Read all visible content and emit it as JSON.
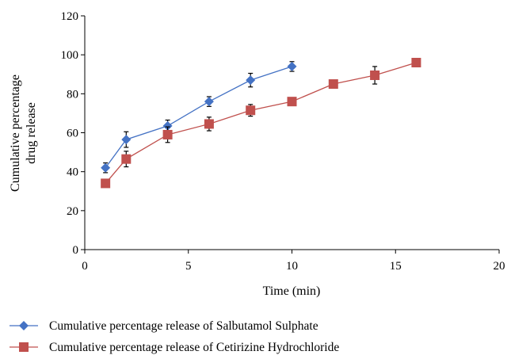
{
  "chart_data": {
    "type": "line",
    "xlabel": "Time (min)",
    "ylabel_lines": [
      "Cumulative percentage",
      "drug release"
    ],
    "xlim": [
      0,
      20
    ],
    "ylim": [
      0,
      120
    ],
    "x_ticks": [
      "0",
      "5",
      "10",
      "15",
      "20"
    ],
    "y_ticks": [
      "0",
      "20",
      "40",
      "60",
      "80",
      "100",
      "120"
    ],
    "grid": false,
    "legend_position": "bottom",
    "series": [
      {
        "name": "Cumulative percentage release of Salbutamol Sulphate",
        "marker": "diamond",
        "color": "#4472c4",
        "x": [
          1,
          2,
          4,
          6,
          8,
          10
        ],
        "y": [
          42,
          56.5,
          63.5,
          76,
          87,
          94
        ],
        "err": [
          2.5,
          4,
          3,
          2.5,
          3.5,
          2.5
        ]
      },
      {
        "name": "Cumulative percentage release of Cetirizine Hydrochloride",
        "marker": "square",
        "color": "#c0504d",
        "x": [
          1,
          2,
          4,
          6,
          8,
          10,
          12,
          14,
          16
        ],
        "y": [
          34,
          46.5,
          59,
          64.5,
          71.5,
          76,
          85,
          89.5,
          96
        ],
        "err": [
          0,
          4,
          4,
          3.5,
          3,
          0,
          0,
          4.5,
          0
        ]
      }
    ]
  }
}
